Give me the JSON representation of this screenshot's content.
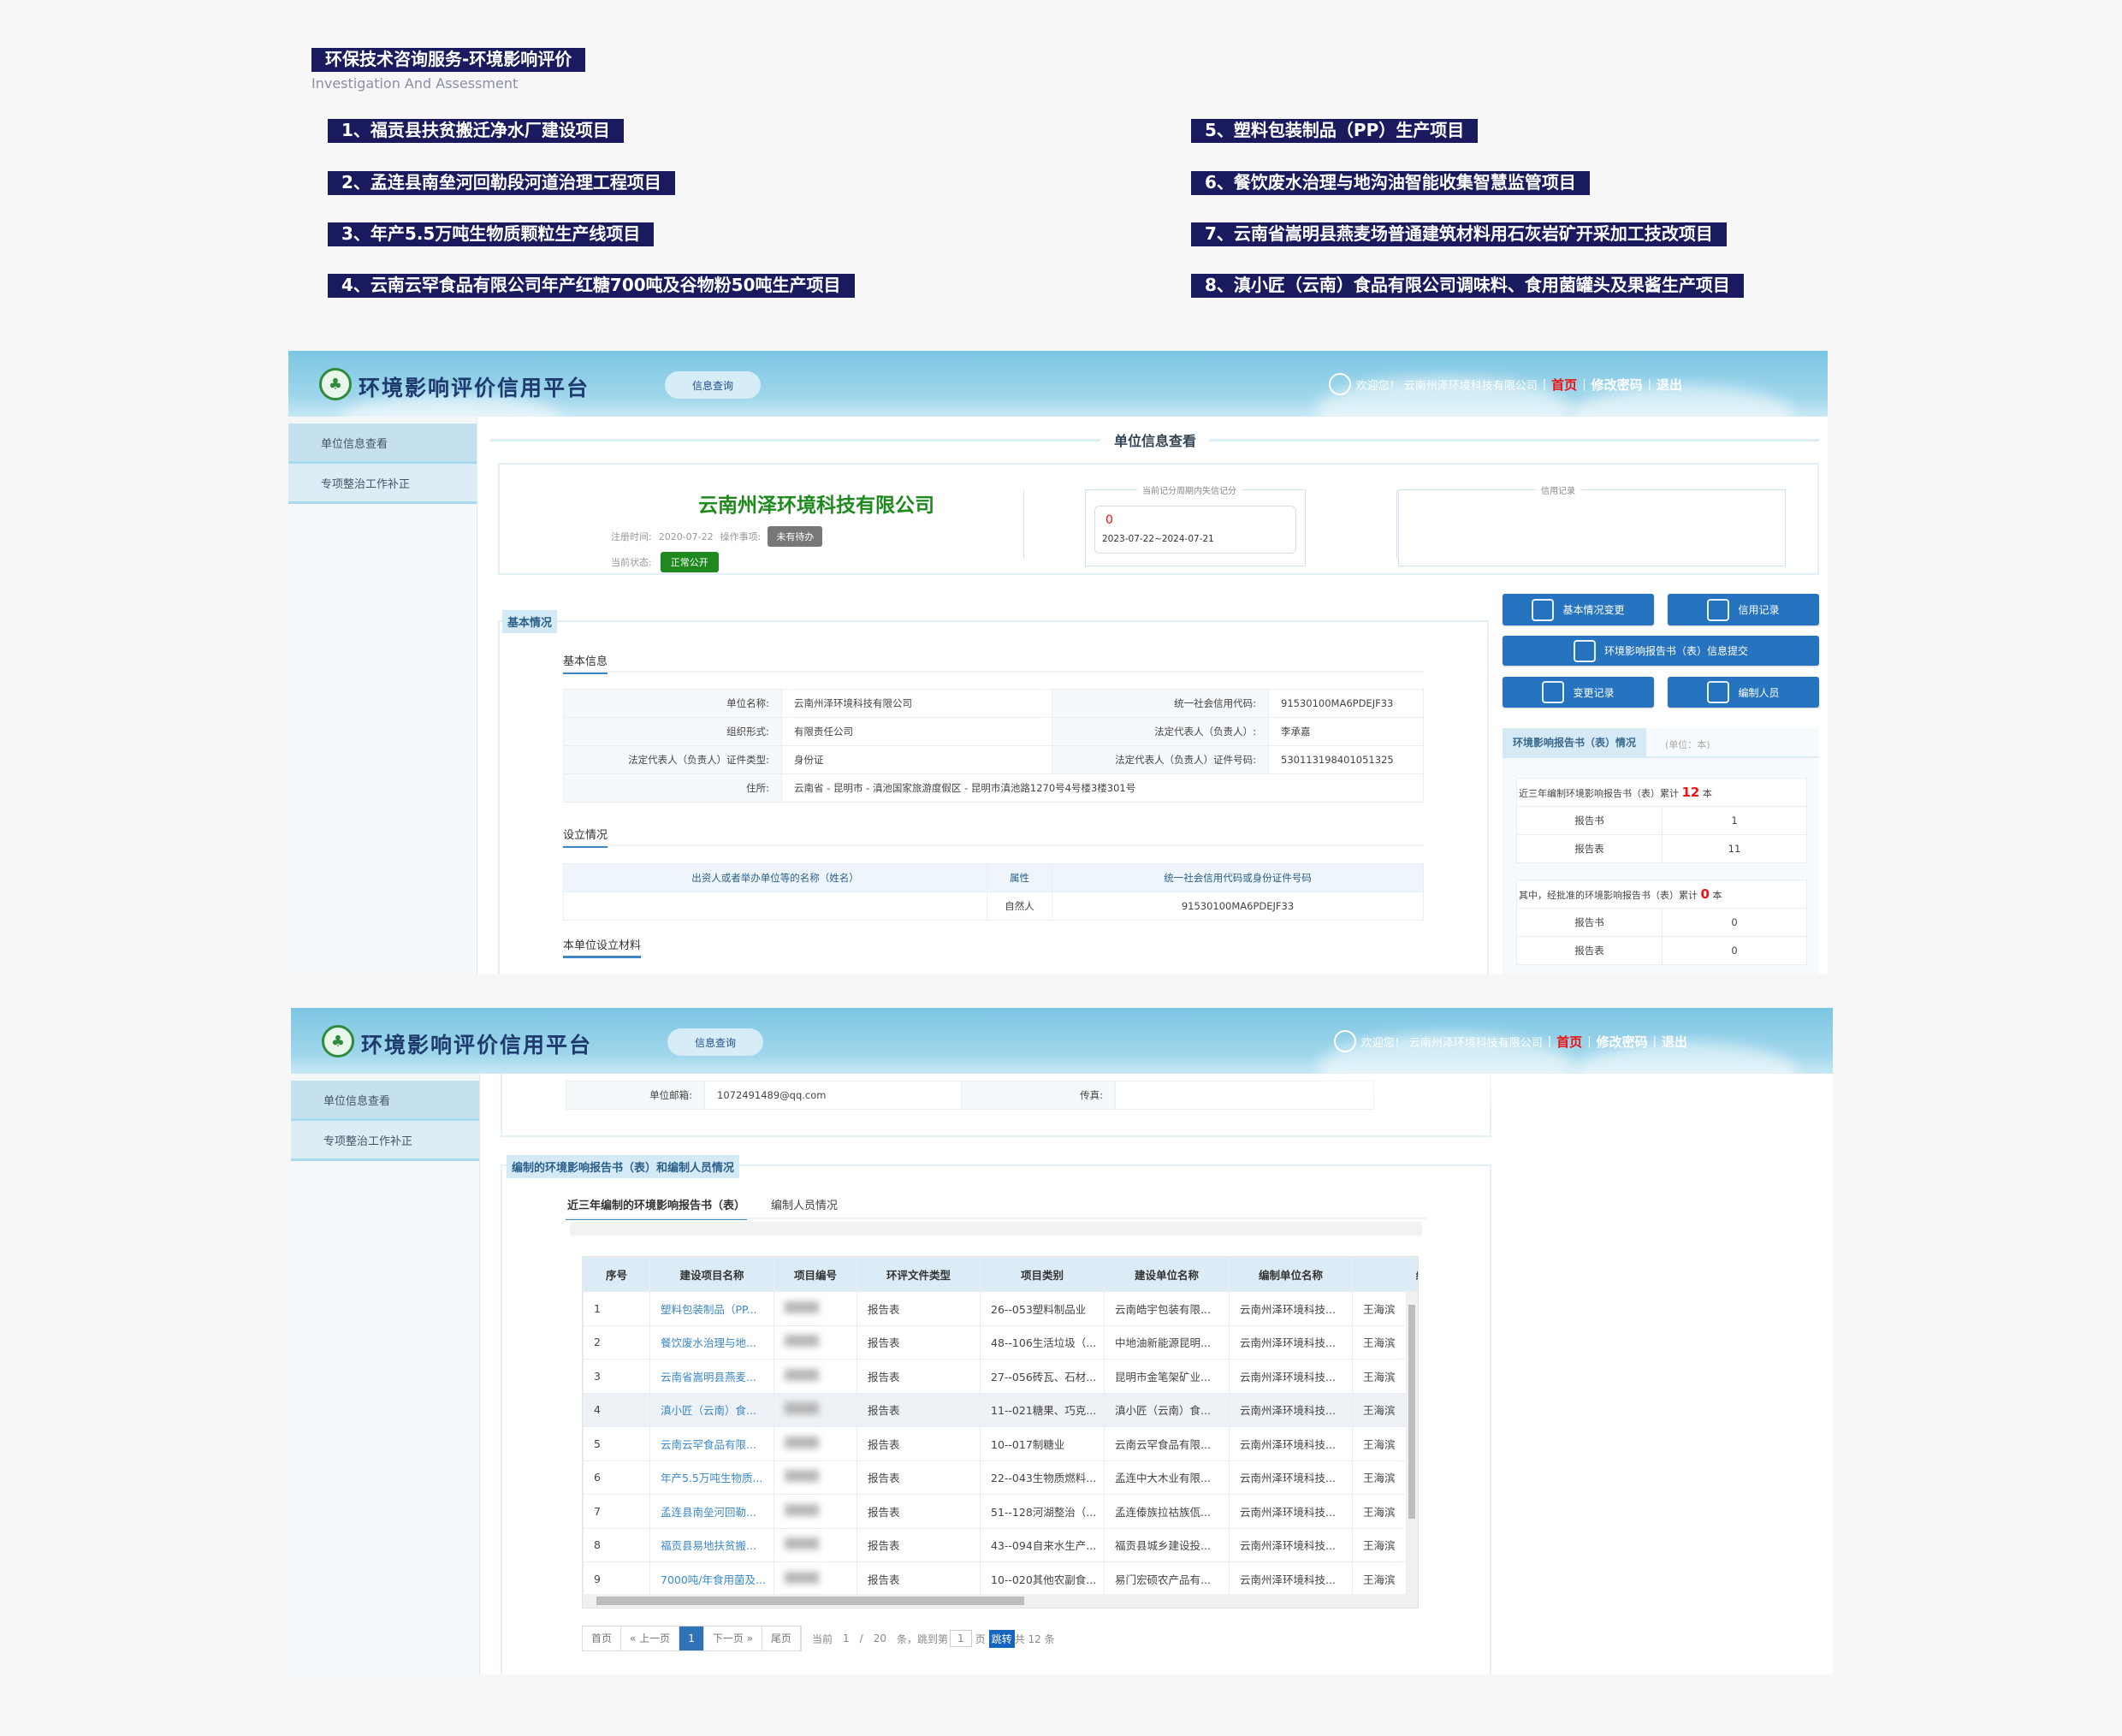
{
  "intro": {
    "title": "环保技术咨询服务-环境影响评价",
    "subtitle": "Investigation And Assessment",
    "projects": [
      "1、福贡县扶贫搬迁净水厂建设项目",
      "2、孟连县南垒河回勒段河道治理工程项目",
      "3、年产5.5万吨生物质颗粒生产线项目",
      "4、云南云罕食品有限公司年产红糖700吨及谷物粉50吨生产项目",
      "5、塑料包装制品（PP）生产项目",
      "6、餐饮废水治理与地沟油智能收集智慧监管项目",
      "7、云南省嵩明县燕麦场普通建筑材料用石灰岩矿开采加工技改项目",
      "8、滇小匠（云南）食品有限公司调味料、食用菌罐头及果酱生产项目"
    ]
  },
  "header": {
    "platform": "环境影响评价信用平台",
    "query_btn": "信息查询",
    "welcome": "欢迎您！ 云南州泽环境科技有限公司",
    "home": "首页",
    "change_pwd": "修改密码",
    "logout": "退出",
    "sep": "|"
  },
  "sidebar": {
    "items": [
      {
        "label": "单位信息查看"
      },
      {
        "label": "专项整治工作补正"
      }
    ]
  },
  "main": {
    "title": "单位信息查看",
    "company": {
      "name": "云南州泽环境科技有限公司",
      "reg_label": "注册时间:",
      "reg_date": "2020-07-22",
      "op_label": "操作事项:",
      "op_badge": "未有待办",
      "status_label": "当前状态:",
      "status_badge": "正常公开",
      "score_title": "当前记分周期内失信记分",
      "score": "0",
      "score_period": "2023-07-22~2024-07-21",
      "credit_title": "信用记录"
    },
    "basic": {
      "section": "基本情况",
      "info_title": "基本信息",
      "rows": [
        [
          "单位名称:",
          "云南州泽环境科技有限公司",
          "统一社会信用代码:",
          "91530100MA6PDEJF33"
        ],
        [
          "组织形式:",
          "有限责任公司",
          "法定代表人（负责人）:",
          "李承嘉"
        ],
        [
          "法定代表人（负责人）证件类型:",
          "身份证",
          "法定代表人（负责人）证件号码:",
          "530113198401051325"
        ]
      ],
      "address_label": "住所:",
      "address": "云南省 - 昆明市 - 滇池国家旅游度假区 - 昆明市滇池路1270号4号楼3楼301号",
      "setup_title": "设立情况",
      "setup_headers": [
        "出资人或者举办单位等的名称（姓名）",
        "属性",
        "统一社会信用代码或身份证件号码"
      ],
      "setup_row": [
        "",
        "自然人",
        "91530100MA6PDEJF33"
      ],
      "materials_title": "本单位设立材料"
    },
    "actions": [
      "基本情况变更",
      "信用记录",
      "环境影响报告书（表）信息提交",
      "变更记录",
      "编制人员"
    ],
    "reports": {
      "title": "环境影响报告书（表）情况",
      "unit": "(单位：本)",
      "total_label": "近三年编制环境影响报告书（表）累计",
      "total": "12",
      "ben": "本",
      "rows1": [
        [
          "报告书",
          "1"
        ],
        [
          "报告表",
          "11"
        ]
      ],
      "approved_label": "其中，经批准的环境影响报告书（表）累计",
      "approved": "0",
      "rows2": [
        [
          "报告书",
          "0"
        ],
        [
          "报告表",
          "0"
        ]
      ]
    }
  },
  "page2": {
    "email_label": "单位邮箱:",
    "email": "1072491489@qq.com",
    "fax_label": "传真:",
    "fax": "",
    "section": "编制的环境影响报告书（表）和编制人员情况",
    "tabs": [
      "近三年编制的环境影响报告书（表）",
      "编制人员情况"
    ],
    "headers": [
      "序号",
      "建设项目名称",
      "项目编号",
      "环评文件类型",
      "项目类别",
      "建设单位名称",
      "编制单位名称",
      "编"
    ],
    "rows": [
      [
        "1",
        "塑料包装制品（PP...",
        "",
        "报告表",
        "26--053塑料制品业",
        "云南皓宇包装有限...",
        "云南州泽环境科技...",
        "王海滨"
      ],
      [
        "2",
        "餐饮废水治理与地...",
        "",
        "报告表",
        "48--106生活垃圾（...",
        "中地油新能源昆明...",
        "云南州泽环境科技...",
        "王海滨"
      ],
      [
        "3",
        "云南省嵩明县燕麦...",
        "",
        "报告表",
        "27--056砖瓦、石材...",
        "昆明市金笔架矿业...",
        "云南州泽环境科技...",
        "王海滨"
      ],
      [
        "4",
        "滇小匠（云南）食...",
        "",
        "报告表",
        "11--021糖果、巧克...",
        "滇小匠（云南）食...",
        "云南州泽环境科技...",
        "王海滨"
      ],
      [
        "5",
        "云南云罕食品有限...",
        "",
        "报告表",
        "10--017制糖业",
        "云南云罕食品有限...",
        "云南州泽环境科技...",
        "王海滨"
      ],
      [
        "6",
        "年产5.5万吨生物质...",
        "",
        "报告表",
        "22--043生物质燃料...",
        "孟连中大木业有限...",
        "云南州泽环境科技...",
        "王海滨"
      ],
      [
        "7",
        "孟连县南垒河回勒...",
        "",
        "报告表",
        "51--128河湖整治（...",
        "孟连傣族拉祜族佤...",
        "云南州泽环境科技...",
        "王海滨"
      ],
      [
        "8",
        "福贡县易地扶贫搬...",
        "",
        "报告表",
        "43--094自来水生产...",
        "福贡县城乡建设投...",
        "云南州泽环境科技...",
        "王海滨"
      ],
      [
        "9",
        "7000吨/年食用菌及...",
        "",
        "报告表",
        "10--020其他农副食...",
        "易门宏硕农产品有...",
        "云南州泽环境科技...",
        "王海滨"
      ]
    ],
    "pager": {
      "first": "首页",
      "prev": "« 上一页",
      "current": "1",
      "next": "下一页 »",
      "last": "尾页",
      "cur_label": "当前",
      "cur": "1",
      "slash": "/",
      "size": "20",
      "tiao": "条，跳到第",
      "page_input": "1",
      "ye": "页",
      "jump": "跳转",
      "total": "共 12 条"
    }
  },
  "colors": {
    "banner": "#1a1a5e",
    "accent": "#2674c0",
    "company": "#1e8a1e",
    "status": "#1e8a1e",
    "red": "#e11111"
  }
}
